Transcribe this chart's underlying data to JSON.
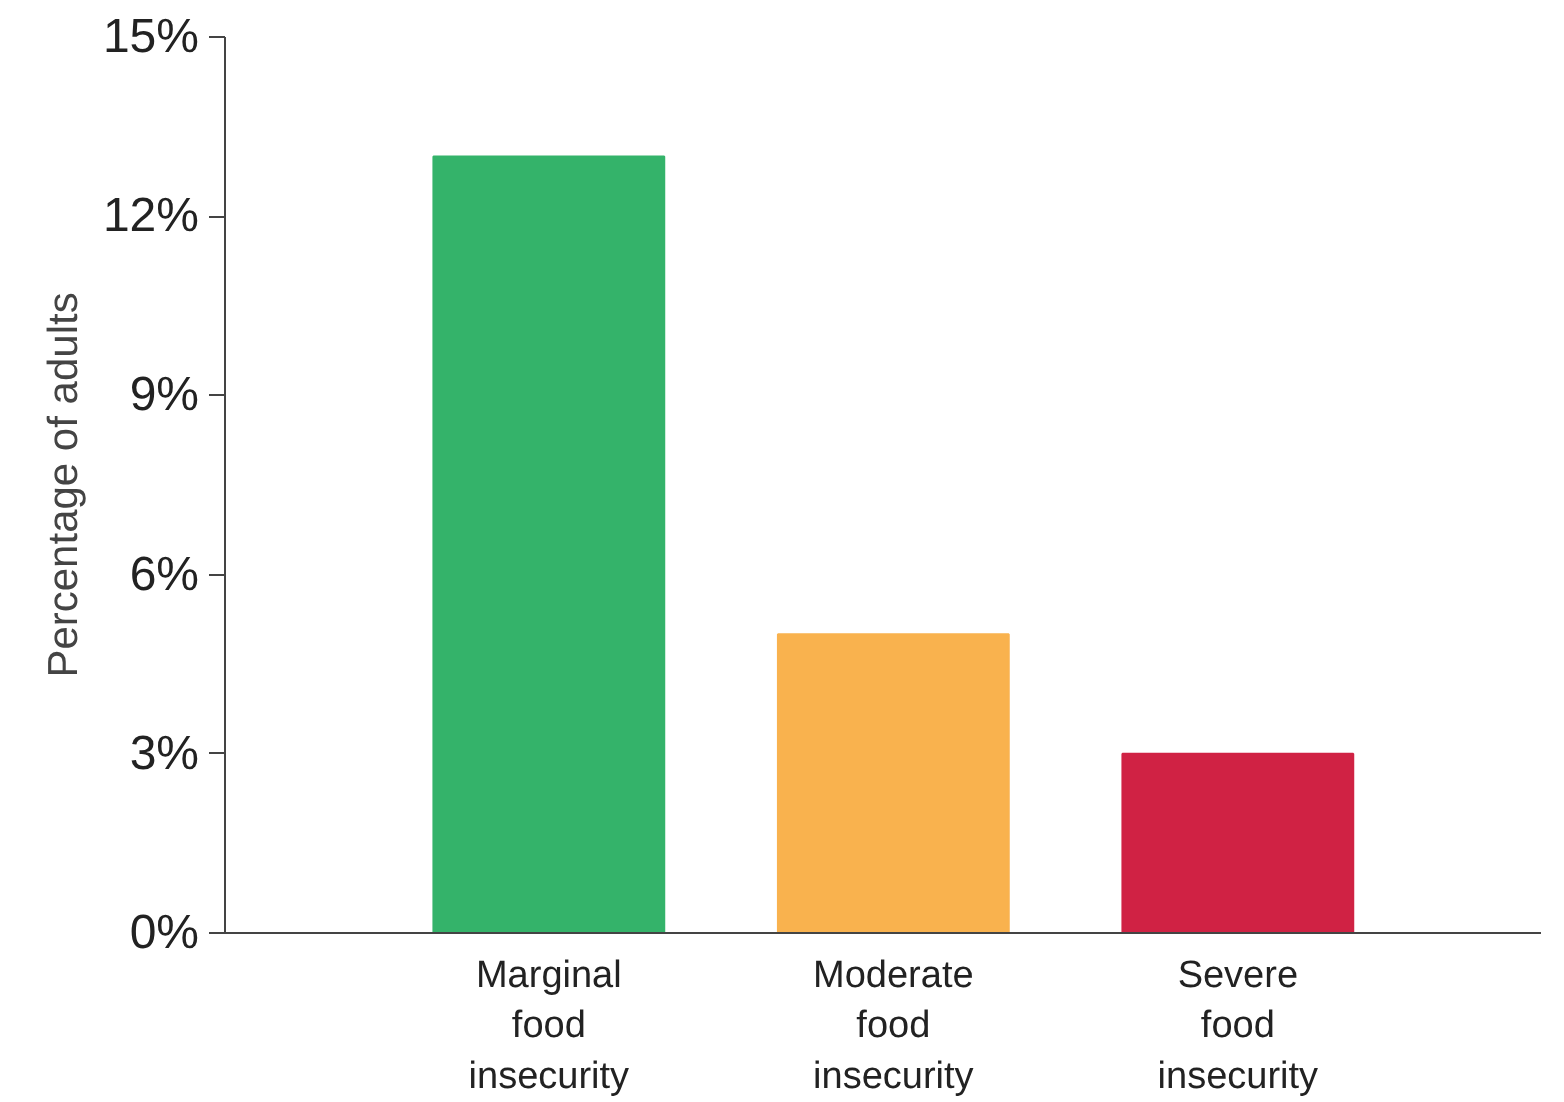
{
  "chart_data": {
    "type": "bar",
    "ylabel": "Percentage of adults",
    "categories": [
      "Marginal\nfood\ninsecurity",
      "Moderate\nfood\ninsecurity",
      "Severe\nfood\ninsecurity"
    ],
    "values": [
      13,
      5,
      3
    ],
    "colors": [
      "#34b36a",
      "#f9b24e",
      "#d02244"
    ],
    "ylim": [
      0,
      15
    ],
    "yticks": [
      {
        "value": 0,
        "label": "0%"
      },
      {
        "value": 3,
        "label": "3%"
      },
      {
        "value": 6,
        "label": "6%"
      },
      {
        "value": 9,
        "label": "9%"
      },
      {
        "value": 12,
        "label": "12%"
      },
      {
        "value": 15,
        "label": "15%"
      }
    ],
    "grid": false
  }
}
